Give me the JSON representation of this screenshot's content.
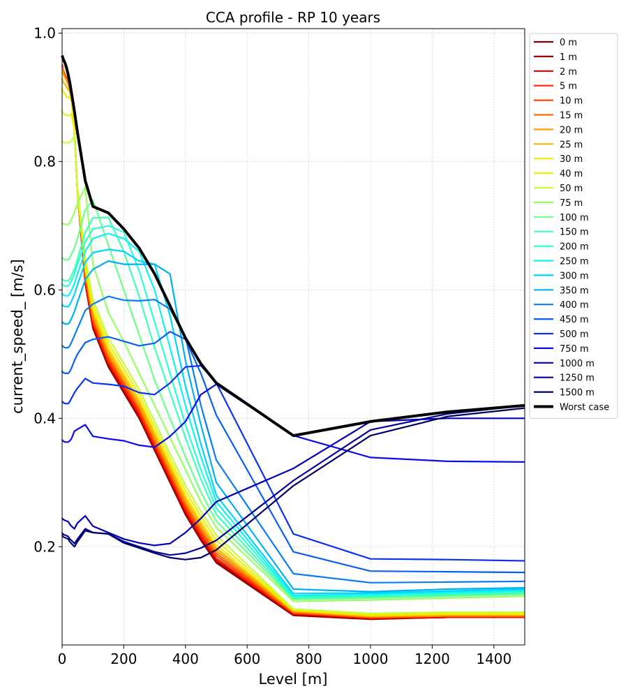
{
  "chart_data": {
    "type": "line",
    "title": "CCA profile - RP 10 years",
    "xlabel": "Level [m]",
    "ylabel": "current_speed_ [m/s]",
    "xlim": [
      0,
      1500
    ],
    "ylim": [
      0.047,
      1.007
    ],
    "xticks": [
      0,
      200,
      400,
      600,
      800,
      1000,
      1200,
      1400
    ],
    "yticks": [
      0.2,
      0.4,
      0.6,
      0.8,
      1.0
    ],
    "ytick_labels": [
      "0.2",
      "0.4",
      "0.6",
      "0.8",
      "1.0"
    ],
    "grid": true,
    "legend_position": "outside-right-top",
    "x": [
      0,
      1,
      2,
      5,
      10,
      15,
      20,
      25,
      30,
      40,
      50,
      75,
      100,
      150,
      200,
      250,
      300,
      350,
      400,
      450,
      500,
      750,
      1000,
      1250,
      1500
    ],
    "series": [
      {
        "name": "0 m",
        "color": "#800000",
        "values": [
          0.95,
          0.95,
          0.945,
          0.94,
          0.935,
          0.93,
          0.92,
          0.91,
          0.9,
          0.85,
          0.75,
          0.61,
          0.54,
          0.48,
          0.44,
          0.4,
          0.35,
          0.3,
          0.25,
          0.21,
          0.175,
          0.093,
          0.087,
          0.09,
          0.09
        ]
      },
      {
        "name": "1 m",
        "color": "#a00000",
        "values": [
          0.95,
          0.95,
          0.945,
          0.94,
          0.935,
          0.93,
          0.92,
          0.91,
          0.9,
          0.85,
          0.75,
          0.612,
          0.542,
          0.482,
          0.442,
          0.402,
          0.352,
          0.302,
          0.252,
          0.212,
          0.177,
          0.094,
          0.088,
          0.09,
          0.09
        ]
      },
      {
        "name": "2 m",
        "color": "#d40000",
        "values": [
          0.95,
          0.95,
          0.945,
          0.94,
          0.935,
          0.93,
          0.92,
          0.91,
          0.9,
          0.85,
          0.75,
          0.614,
          0.544,
          0.484,
          0.444,
          0.404,
          0.354,
          0.304,
          0.254,
          0.214,
          0.179,
          0.095,
          0.088,
          0.09,
          0.09
        ]
      },
      {
        "name": "5 m",
        "color": "#ff1e00",
        "values": [
          0.95,
          0.95,
          0.945,
          0.94,
          0.935,
          0.93,
          0.92,
          0.91,
          0.9,
          0.85,
          0.75,
          0.617,
          0.548,
          0.488,
          0.448,
          0.408,
          0.358,
          0.308,
          0.258,
          0.218,
          0.182,
          0.096,
          0.089,
          0.091,
          0.091
        ]
      },
      {
        "name": "10 m",
        "color": "#ff4500",
        "values": [
          0.95,
          0.95,
          0.945,
          0.94,
          0.935,
          0.93,
          0.92,
          0.91,
          0.9,
          0.85,
          0.75,
          0.62,
          0.552,
          0.492,
          0.452,
          0.412,
          0.362,
          0.312,
          0.262,
          0.222,
          0.186,
          0.097,
          0.09,
          0.092,
          0.092
        ]
      },
      {
        "name": "15 m",
        "color": "#ff6a00",
        "values": [
          0.948,
          0.947,
          0.943,
          0.938,
          0.933,
          0.928,
          0.92,
          0.91,
          0.9,
          0.85,
          0.75,
          0.624,
          0.556,
          0.496,
          0.456,
          0.416,
          0.366,
          0.316,
          0.266,
          0.226,
          0.19,
          0.098,
          0.09,
          0.092,
          0.092
        ]
      },
      {
        "name": "20 m",
        "color": "#ff9a00",
        "values": [
          0.945,
          0.944,
          0.94,
          0.935,
          0.93,
          0.925,
          0.92,
          0.91,
          0.9,
          0.85,
          0.75,
          0.628,
          0.56,
          0.5,
          0.46,
          0.42,
          0.37,
          0.32,
          0.27,
          0.23,
          0.194,
          0.099,
          0.091,
          0.093,
          0.093
        ]
      },
      {
        "name": "25 m",
        "color": "#f0b800",
        "values": [
          0.93,
          0.928,
          0.925,
          0.922,
          0.92,
          0.915,
          0.912,
          0.908,
          0.9,
          0.85,
          0.75,
          0.632,
          0.565,
          0.505,
          0.465,
          0.425,
          0.375,
          0.325,
          0.275,
          0.235,
          0.198,
          0.1,
          0.092,
          0.094,
          0.094
        ]
      },
      {
        "name": "30 m",
        "color": "#ffe400",
        "values": [
          0.915,
          0.913,
          0.91,
          0.908,
          0.905,
          0.9,
          0.9,
          0.9,
          0.895,
          0.85,
          0.75,
          0.636,
          0.57,
          0.51,
          0.47,
          0.43,
          0.38,
          0.33,
          0.28,
          0.24,
          0.203,
          0.101,
          0.093,
          0.095,
          0.095
        ]
      },
      {
        "name": "40 m",
        "color": "#e8f20a",
        "values": [
          0.88,
          0.878,
          0.876,
          0.875,
          0.873,
          0.872,
          0.872,
          0.872,
          0.874,
          0.85,
          0.75,
          0.642,
          0.577,
          0.517,
          0.477,
          0.437,
          0.387,
          0.337,
          0.287,
          0.247,
          0.21,
          0.102,
          0.095,
          0.097,
          0.097
        ]
      },
      {
        "name": "50 m",
        "color": "#c4ff34",
        "values": [
          0.832,
          0.831,
          0.83,
          0.83,
          0.829,
          0.829,
          0.829,
          0.83,
          0.832,
          0.84,
          0.76,
          0.65,
          0.585,
          0.525,
          0.485,
          0.445,
          0.395,
          0.345,
          0.295,
          0.255,
          0.218,
          0.103,
          0.096,
          0.098,
          0.098
        ]
      },
      {
        "name": "75 m",
        "color": "#98ff60",
        "values": [
          0.705,
          0.704,
          0.703,
          0.703,
          0.702,
          0.702,
          0.702,
          0.705,
          0.71,
          0.72,
          0.735,
          0.76,
          0.64,
          0.565,
          0.52,
          0.47,
          0.42,
          0.37,
          0.32,
          0.27,
          0.23,
          0.115,
          0.117,
          0.12,
          0.123
        ]
      },
      {
        "name": "100 m",
        "color": "#6cff8c",
        "values": [
          0.651,
          0.65,
          0.649,
          0.648,
          0.647,
          0.647,
          0.647,
          0.65,
          0.655,
          0.665,
          0.68,
          0.725,
          0.74,
          0.67,
          0.6,
          0.53,
          0.46,
          0.4,
          0.34,
          0.285,
          0.24,
          0.118,
          0.12,
          0.123,
          0.126
        ]
      },
      {
        "name": "150 m",
        "color": "#40ffb8",
        "values": [
          0.618,
          0.617,
          0.616,
          0.615,
          0.614,
          0.614,
          0.614,
          0.617,
          0.622,
          0.632,
          0.648,
          0.69,
          0.712,
          0.713,
          0.66,
          0.59,
          0.51,
          0.44,
          0.37,
          0.305,
          0.25,
          0.12,
          0.122,
          0.125,
          0.128
        ]
      },
      {
        "name": "200 m",
        "color": "#2affd5",
        "values": [
          0.61,
          0.609,
          0.608,
          0.607,
          0.606,
          0.606,
          0.606,
          0.609,
          0.614,
          0.625,
          0.64,
          0.675,
          0.695,
          0.7,
          0.69,
          0.63,
          0.55,
          0.47,
          0.39,
          0.32,
          0.26,
          0.122,
          0.124,
          0.127,
          0.13
        ]
      },
      {
        "name": "250 m",
        "color": "#10f0f0",
        "values": [
          0.595,
          0.594,
          0.593,
          0.592,
          0.591,
          0.591,
          0.591,
          0.594,
          0.599,
          0.61,
          0.625,
          0.66,
          0.68,
          0.688,
          0.68,
          0.66,
          0.6,
          0.51,
          0.42,
          0.34,
          0.27,
          0.124,
          0.126,
          0.129,
          0.132
        ]
      },
      {
        "name": "300 m",
        "color": "#00d4ff",
        "values": [
          0.578,
          0.577,
          0.576,
          0.575,
          0.574,
          0.574,
          0.574,
          0.577,
          0.582,
          0.593,
          0.608,
          0.643,
          0.658,
          0.663,
          0.66,
          0.645,
          0.64,
          0.56,
          0.45,
          0.36,
          0.28,
          0.127,
          0.128,
          0.131,
          0.134
        ]
      },
      {
        "name": "350 m",
        "color": "#00b0f0",
        "values": [
          0.551,
          0.55,
          0.549,
          0.548,
          0.547,
          0.547,
          0.547,
          0.55,
          0.555,
          0.566,
          0.581,
          0.616,
          0.632,
          0.645,
          0.64,
          0.64,
          0.64,
          0.625,
          0.49,
          0.39,
          0.3,
          0.134,
          0.13,
          0.134,
          0.136
        ]
      },
      {
        "name": "400 m",
        "color": "#0a7cf0",
        "values": [
          0.514,
          0.513,
          0.512,
          0.511,
          0.51,
          0.51,
          0.51,
          0.513,
          0.518,
          0.529,
          0.54,
          0.568,
          0.578,
          0.59,
          0.584,
          0.583,
          0.585,
          0.57,
          0.527,
          0.42,
          0.335,
          0.158,
          0.144,
          0.145,
          0.146
        ]
      },
      {
        "name": "450 m",
        "color": "#0a5ef0",
        "values": [
          0.474,
          0.473,
          0.472,
          0.471,
          0.47,
          0.47,
          0.47,
          0.473,
          0.478,
          0.49,
          0.5,
          0.518,
          0.523,
          0.527,
          0.52,
          0.513,
          0.517,
          0.535,
          0.523,
          0.47,
          0.405,
          0.192,
          0.162,
          0.161,
          0.16
        ]
      },
      {
        "name": "500 m",
        "color": "#0a32f0",
        "values": [
          0.427,
          0.426,
          0.425,
          0.424,
          0.423,
          0.423,
          0.423,
          0.426,
          0.431,
          0.44,
          0.447,
          0.462,
          0.455,
          0.453,
          0.45,
          0.44,
          0.437,
          0.455,
          0.48,
          0.482,
          0.455,
          0.22,
          0.181,
          0.18,
          0.178
        ]
      },
      {
        "name": "750 m",
        "color": "#0a0aee",
        "values": [
          0.367,
          0.366,
          0.365,
          0.364,
          0.363,
          0.363,
          0.363,
          0.365,
          0.368,
          0.38,
          0.383,
          0.39,
          0.372,
          0.368,
          0.365,
          0.358,
          0.355,
          0.372,
          0.395,
          0.437,
          0.453,
          0.373,
          0.339,
          0.333,
          0.332
        ]
      },
      {
        "name": "1000 m",
        "color": "#0000b4",
        "values": [
          0.245,
          0.244,
          0.243,
          0.242,
          0.241,
          0.24,
          0.239,
          0.235,
          0.232,
          0.228,
          0.237,
          0.248,
          0.232,
          0.222,
          0.212,
          0.206,
          0.202,
          0.205,
          0.222,
          0.244,
          0.27,
          0.322,
          0.395,
          0.4,
          0.4
        ]
      },
      {
        "name": "1250 m",
        "color": "#000096",
        "values": [
          0.222,
          0.221,
          0.22,
          0.219,
          0.218,
          0.217,
          0.216,
          0.212,
          0.21,
          0.205,
          0.212,
          0.228,
          0.222,
          0.22,
          0.208,
          0.2,
          0.192,
          0.187,
          0.19,
          0.198,
          0.21,
          0.303,
          0.382,
          0.407,
          0.42
        ]
      },
      {
        "name": "1500 m",
        "color": "#000064",
        "values": [
          0.218,
          0.217,
          0.216,
          0.215,
          0.214,
          0.213,
          0.212,
          0.208,
          0.205,
          0.2,
          0.208,
          0.225,
          0.222,
          0.22,
          0.206,
          0.198,
          0.19,
          0.183,
          0.18,
          0.183,
          0.195,
          0.295,
          0.373,
          0.403,
          0.416
        ]
      },
      {
        "name": "Worst case",
        "color": "#000000",
        "values": [
          0.965,
          0.964,
          0.962,
          0.958,
          0.953,
          0.945,
          0.935,
          0.923,
          0.908,
          0.878,
          0.845,
          0.77,
          0.73,
          0.72,
          0.695,
          0.665,
          0.625,
          0.575,
          0.525,
          0.485,
          0.455,
          0.373,
          0.395,
          0.41,
          0.42
        ]
      }
    ]
  }
}
